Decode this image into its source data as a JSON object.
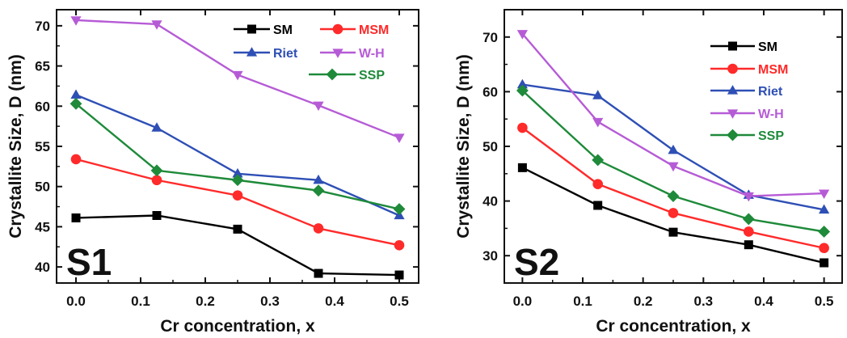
{
  "chart_data": [
    {
      "type": "line",
      "panel_label": "S1",
      "xlabel": "Cr concentration, x",
      "ylabel": "Crystallite Size, D (nm)",
      "x": [
        0.0,
        0.125,
        0.25,
        0.375,
        0.5
      ],
      "xlim": [
        -0.03,
        0.53
      ],
      "ylim": [
        38,
        72
      ],
      "xticks": [
        "0.0",
        "0.1",
        "0.2",
        "0.3",
        "0.4",
        "0.5"
      ],
      "xtick_values": [
        0.0,
        0.1,
        0.2,
        0.3,
        0.4,
        0.5
      ],
      "yticks": [
        "40",
        "45",
        "50",
        "55",
        "60",
        "65",
        "70"
      ],
      "ytick_values": [
        40,
        45,
        50,
        55,
        60,
        65,
        70
      ],
      "legend_position": "top-right",
      "series": [
        {
          "name": "SM",
          "color": "#000000",
          "marker": "square",
          "values": [
            46.1,
            46.4,
            44.7,
            39.2,
            39.0
          ]
        },
        {
          "name": "MSM",
          "color": "#ff2a2a",
          "marker": "circle",
          "values": [
            53.4,
            50.8,
            48.9,
            44.8,
            42.7
          ]
        },
        {
          "name": "Riet",
          "color": "#2e4fb5",
          "marker": "triangle-up",
          "values": [
            61.4,
            57.3,
            51.6,
            50.8,
            46.4
          ]
        },
        {
          "name": "W-H",
          "color": "#b65bd6",
          "marker": "triangle-down",
          "values": [
            70.7,
            70.2,
            63.9,
            60.1,
            56.1
          ]
        },
        {
          "name": "SSP",
          "color": "#1e8a3a",
          "marker": "diamond",
          "values": [
            60.3,
            52.0,
            50.8,
            49.5,
            47.2
          ]
        }
      ]
    },
    {
      "type": "line",
      "panel_label": "S2",
      "xlabel": "Cr concentration, x",
      "ylabel": "Crystallite Size, D (nm)",
      "x": [
        0.0,
        0.125,
        0.25,
        0.375,
        0.5
      ],
      "xlim": [
        -0.03,
        0.53
      ],
      "ylim": [
        25,
        75
      ],
      "xticks": [
        "0.0",
        "0.1",
        "0.2",
        "0.3",
        "0.4",
        "0.5"
      ],
      "xtick_values": [
        0.0,
        0.1,
        0.2,
        0.3,
        0.4,
        0.5
      ],
      "yticks": [
        "30",
        "40",
        "50",
        "60",
        "70"
      ],
      "ytick_values": [
        30,
        40,
        50,
        60,
        70
      ],
      "legend_position": "top-right",
      "series": [
        {
          "name": "SM",
          "color": "#000000",
          "marker": "square",
          "values": [
            46.1,
            39.2,
            34.3,
            32.0,
            28.7
          ]
        },
        {
          "name": "MSM",
          "color": "#ff2a2a",
          "marker": "circle",
          "values": [
            53.4,
            43.1,
            37.8,
            34.4,
            31.4
          ]
        },
        {
          "name": "Riet",
          "color": "#2e4fb5",
          "marker": "triangle-up",
          "values": [
            61.3,
            59.3,
            49.3,
            41.1,
            38.4
          ]
        },
        {
          "name": "W-H",
          "color": "#b65bd6",
          "marker": "triangle-down",
          "values": [
            70.6,
            54.5,
            46.4,
            40.9,
            41.4
          ]
        },
        {
          "name": "SSP",
          "color": "#1e8a3a",
          "marker": "diamond",
          "values": [
            60.2,
            47.5,
            40.9,
            36.7,
            34.4
          ]
        }
      ]
    }
  ]
}
